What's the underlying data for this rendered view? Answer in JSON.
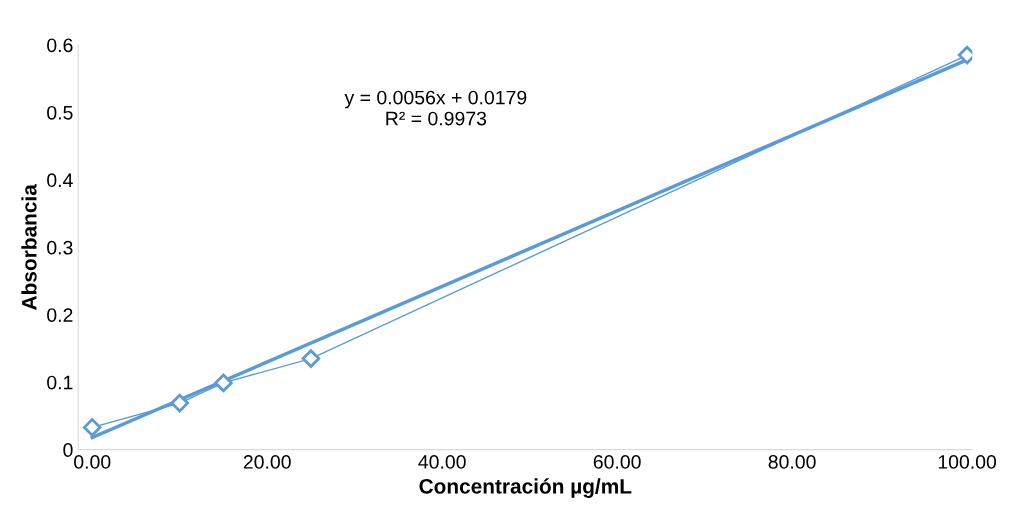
{
  "chart_data": {
    "type": "line",
    "xlabel": "Concentración µg/mL",
    "ylabel": "Absorbancia",
    "xlim": [
      -1.6,
      100.6
    ],
    "ylim": [
      0,
      0.6
    ],
    "xticks": [
      {
        "value": 0,
        "label": "0.00"
      },
      {
        "value": 20,
        "label": "20.00"
      },
      {
        "value": 40,
        "label": "40.00"
      },
      {
        "value": 60,
        "label": "60.00"
      },
      {
        "value": 80,
        "label": "80.00"
      },
      {
        "value": 100,
        "label": "100.00"
      }
    ],
    "yticks": [
      0,
      0.1,
      0.2,
      0.3,
      0.4,
      0.5,
      0.6
    ],
    "grid": false,
    "legend": false,
    "series": [
      {
        "color": "#5b9bd5",
        "marker": "diamond",
        "x": [
          0,
          10,
          15,
          25,
          100
        ],
        "values": [
          0.033,
          0.069,
          0.099,
          0.135,
          0.585
        ]
      },
      {
        "color": "#5b9bd5",
        "marker": "none",
        "x": [
          0,
          100
        ],
        "values": [
          0.018,
          0.578
        ]
      }
    ],
    "annotations": [
      "y = 0.0056x + 0.0179\nR² = 0.9973"
    ]
  }
}
